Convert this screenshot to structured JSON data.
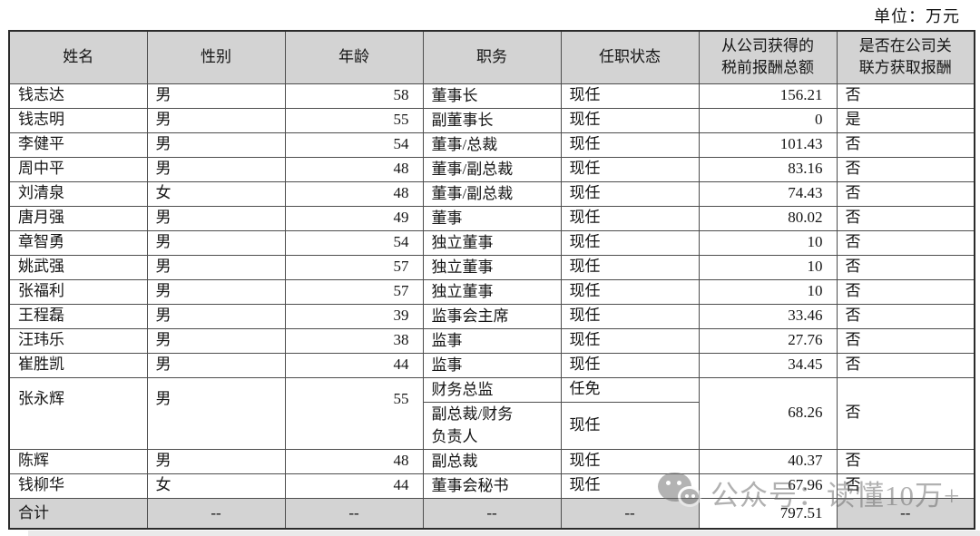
{
  "page": {
    "unit_label": "单位：万元"
  },
  "table": {
    "columns": [
      {
        "key": "name",
        "label": "姓名"
      },
      {
        "key": "gender",
        "label": "性别"
      },
      {
        "key": "age",
        "label": "年龄"
      },
      {
        "key": "position",
        "label": "职务"
      },
      {
        "key": "status",
        "label": "任职状态"
      },
      {
        "key": "compensation",
        "label": "从公司获得的税前报酬总额"
      },
      {
        "key": "related",
        "label": "是否在公司关联方获取报酬"
      }
    ],
    "rows": [
      {
        "name": "钱志达",
        "gender": "男",
        "age": "58",
        "positions": [
          {
            "position": "董事长",
            "status": "现任"
          }
        ],
        "compensation": "156.21",
        "related": "否"
      },
      {
        "name": "钱志明",
        "gender": "男",
        "age": "55",
        "positions": [
          {
            "position": "副董事长",
            "status": "现任"
          }
        ],
        "compensation": "0",
        "related": "是"
      },
      {
        "name": "李健平",
        "gender": "男",
        "age": "54",
        "positions": [
          {
            "position": "董事/总裁",
            "status": "现任"
          }
        ],
        "compensation": "101.43",
        "related": "否"
      },
      {
        "name": "周中平",
        "gender": "男",
        "age": "48",
        "positions": [
          {
            "position": "董事/副总裁",
            "status": "现任"
          }
        ],
        "compensation": "83.16",
        "related": "否"
      },
      {
        "name": "刘清泉",
        "gender": "女",
        "age": "48",
        "positions": [
          {
            "position": "董事/副总裁",
            "status": "现任"
          }
        ],
        "compensation": "74.43",
        "related": "否"
      },
      {
        "name": "唐月强",
        "gender": "男",
        "age": "49",
        "positions": [
          {
            "position": "董事",
            "status": "现任"
          }
        ],
        "compensation": "80.02",
        "related": "否"
      },
      {
        "name": "章智勇",
        "gender": "男",
        "age": "54",
        "positions": [
          {
            "position": "独立董事",
            "status": "现任"
          }
        ],
        "compensation": "10",
        "related": "否"
      },
      {
        "name": "姚武强",
        "gender": "男",
        "age": "57",
        "positions": [
          {
            "position": "独立董事",
            "status": "现任"
          }
        ],
        "compensation": "10",
        "related": "否"
      },
      {
        "name": "张福利",
        "gender": "男",
        "age": "57",
        "positions": [
          {
            "position": "独立董事",
            "status": "现任"
          }
        ],
        "compensation": "10",
        "related": "否"
      },
      {
        "name": "王程磊",
        "gender": "男",
        "age": "39",
        "positions": [
          {
            "position": "监事会主席",
            "status": "现任"
          }
        ],
        "compensation": "33.46",
        "related": "否"
      },
      {
        "name": "汪玮乐",
        "gender": "男",
        "age": "38",
        "positions": [
          {
            "position": "监事",
            "status": "现任"
          }
        ],
        "compensation": "27.76",
        "related": "否"
      },
      {
        "name": "崔胜凯",
        "gender": "男",
        "age": "44",
        "positions": [
          {
            "position": "监事",
            "status": "现任"
          }
        ],
        "compensation": "34.45",
        "related": "否"
      },
      {
        "name": "张永辉",
        "gender": "男",
        "age": "55",
        "positions": [
          {
            "position": "财务总监",
            "status": "任免"
          },
          {
            "position": "副总裁/财务负责人",
            "status": "现任"
          }
        ],
        "compensation": "68.26",
        "related": "否"
      },
      {
        "name": "陈辉",
        "gender": "男",
        "age": "48",
        "positions": [
          {
            "position": "副总裁",
            "status": "现任"
          }
        ],
        "compensation": "40.37",
        "related": "否"
      },
      {
        "name": "钱柳华",
        "gender": "女",
        "age": "44",
        "positions": [
          {
            "position": "董事会秘书",
            "status": "现任"
          }
        ],
        "compensation": "67.96",
        "related": "否"
      }
    ],
    "total_row": {
      "name": "合计",
      "gender": "--",
      "age": "--",
      "position": "--",
      "status": "--",
      "compensation": "797.51",
      "related": "--"
    }
  },
  "watermark": {
    "icon": "wechat-icon",
    "text": "公众号：读懂10万+"
  },
  "colors": {
    "header_bg": "#d3d3d3",
    "total_row_bg": "#d3d3d3",
    "border": "#4d4d4d",
    "watermark_gray": "#6a6a6a",
    "page_edge_strip": "#eaeaea"
  }
}
